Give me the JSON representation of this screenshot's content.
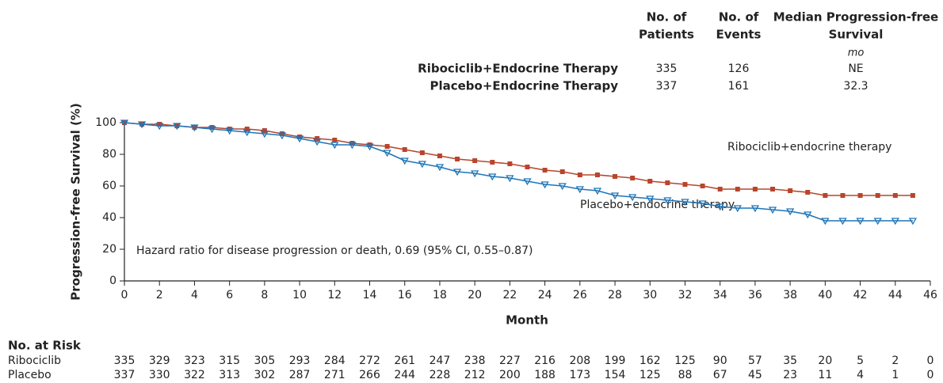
{
  "chart_data": {
    "type": "line",
    "y_label": "Progression-free Survival (%)",
    "x_label": "Month",
    "xlim": [
      0,
      46
    ],
    "xticks": [
      0,
      2,
      4,
      6,
      8,
      10,
      12,
      14,
      16,
      18,
      20,
      22,
      24,
      26,
      28,
      30,
      32,
      34,
      36,
      38,
      40,
      42,
      44,
      46
    ],
    "ylim": [
      0,
      100
    ],
    "yticks": [
      0,
      20,
      40,
      60,
      80,
      100
    ],
    "x": [
      0,
      1,
      2,
      3,
      4,
      5,
      6,
      7,
      8,
      9,
      10,
      11,
      12,
      13,
      14,
      15,
      16,
      17,
      18,
      19,
      20,
      21,
      22,
      23,
      24,
      25,
      26,
      27,
      28,
      29,
      30,
      31,
      32,
      33,
      34,
      35,
      36,
      37,
      38,
      39,
      40,
      41,
      42,
      43,
      44,
      45
    ],
    "series": [
      {
        "name": "Ribociclib+Endocrine Therapy",
        "label": "Ribociclib+endocrine therapy",
        "color": "#b8452c",
        "marker": "square",
        "values": [
          100,
          99,
          99,
          98,
          97,
          97,
          96,
          96,
          95,
          93,
          91,
          90,
          89,
          87,
          86,
          85,
          83,
          81,
          79,
          77,
          76,
          75,
          74,
          72,
          70,
          69,
          67,
          67,
          66,
          65,
          63,
          62,
          61,
          60,
          58,
          58,
          58,
          58,
          57,
          56,
          54,
          54,
          54,
          54,
          54,
          54
        ]
      },
      {
        "name": "Placebo+Endocrine Therapy",
        "label": "Placebo+endocrine therapy",
        "color": "#1f75b8",
        "marker": "triangle",
        "values": [
          100,
          99,
          98,
          98,
          97,
          96,
          95,
          94,
          93,
          92,
          90,
          88,
          86,
          86,
          85,
          81,
          76,
          74,
          72,
          69,
          68,
          66,
          65,
          63,
          61,
          60,
          58,
          57,
          54,
          53,
          52,
          51,
          50,
          49,
          47,
          46,
          46,
          45,
          44,
          42,
          38,
          38,
          38,
          38,
          38,
          38
        ]
      }
    ],
    "annotation": "Hazard ratio for disease progression or death, 0.69 (95% CI, 0.55–0.87)"
  },
  "legend_table": {
    "headers": [
      [
        "No. of",
        "Patients"
      ],
      [
        "No. of",
        "Events"
      ],
      [
        "Median Progression-free",
        "Survival"
      ]
    ],
    "unit": "mo",
    "rows": [
      {
        "patients": 335,
        "events": 126,
        "median": "NE"
      },
      {
        "patients": 337,
        "events": 161,
        "median": 32.3
      }
    ]
  },
  "risk_table": {
    "title": "No. at Risk",
    "rows": [
      {
        "name": "Ribociclib",
        "values": [
          335,
          329,
          323,
          315,
          305,
          293,
          284,
          272,
          261,
          247,
          238,
          227,
          216,
          208,
          199,
          162,
          125,
          90,
          57,
          35,
          20,
          5,
          2,
          0
        ]
      },
      {
        "name": "Placebo",
        "values": [
          337,
          330,
          322,
          313,
          302,
          287,
          271,
          266,
          244,
          228,
          212,
          200,
          188,
          173,
          154,
          125,
          88,
          67,
          45,
          23,
          11,
          4,
          1,
          0
        ]
      }
    ]
  }
}
